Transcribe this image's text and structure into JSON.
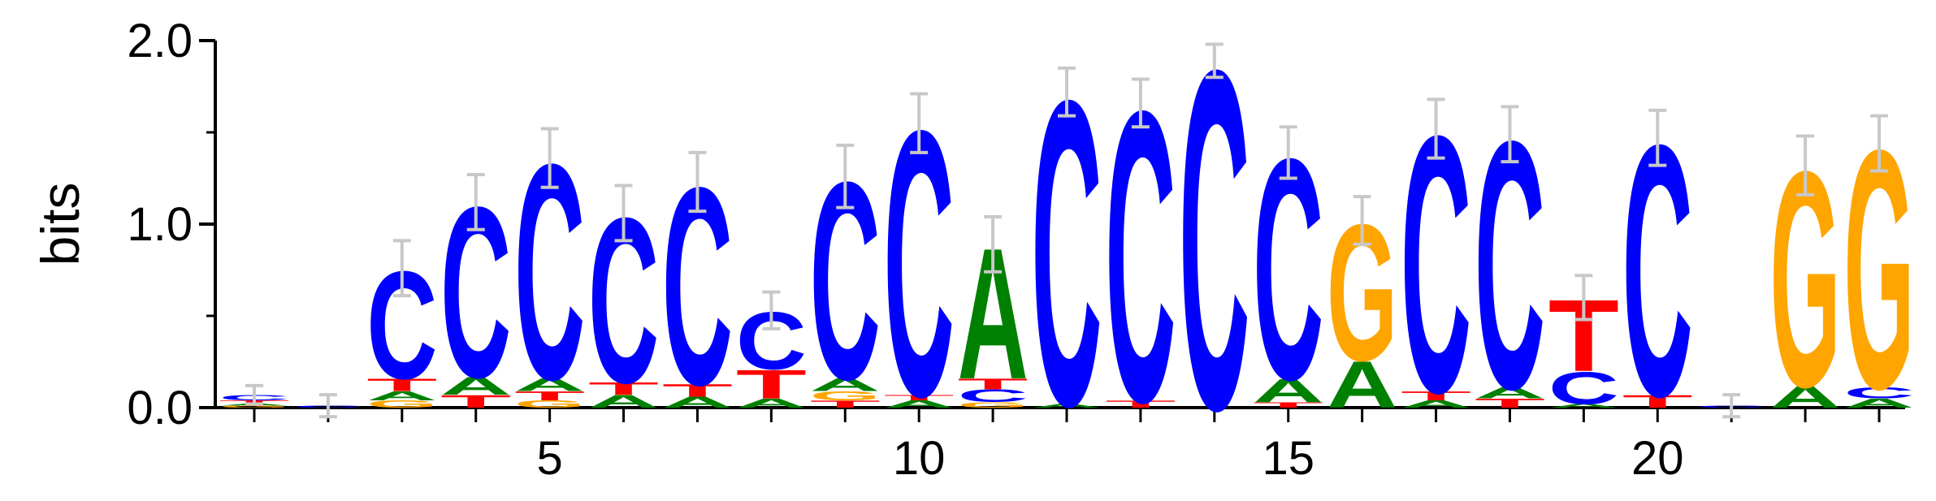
{
  "chart_data": {
    "type": "sequence-logo",
    "ylabel": "bits",
    "ylim": [
      0,
      2.0
    ],
    "y_ticks": [
      {
        "value": 0.0,
        "label": "0.0"
      },
      {
        "value": 1.0,
        "label": "1.0"
      },
      {
        "value": 2.0,
        "label": "2.0"
      }
    ],
    "x_range": [
      1,
      23
    ],
    "x_ticks": [
      {
        "value": 5,
        "label": "5"
      },
      {
        "value": 10,
        "label": "10"
      },
      {
        "value": 15,
        "label": "15"
      },
      {
        "value": 20,
        "label": "20"
      }
    ],
    "colors": {
      "A": "#008000",
      "C": "#0000ff",
      "G": "#ffa500",
      "T": "#ff0000"
    },
    "error_bar_color": "#c8c8c8",
    "positions": [
      {
        "pos": 1,
        "stack": [
          {
            "base": "G",
            "bits": 0.01
          },
          {
            "base": "A",
            "bits": 0.01
          },
          {
            "base": "T",
            "bits": 0.02
          },
          {
            "base": "C",
            "bits": 0.03
          }
        ],
        "error": 0.05
      },
      {
        "pos": 2,
        "stack": [
          {
            "base": "C",
            "bits": 0.01
          }
        ],
        "error": 0.06
      },
      {
        "pos": 3,
        "stack": [
          {
            "base": "G",
            "bits": 0.04
          },
          {
            "base": "A",
            "bits": 0.05
          },
          {
            "base": "T",
            "bits": 0.07
          },
          {
            "base": "C",
            "bits": 0.6
          }
        ],
        "error": 0.15
      },
      {
        "pos": 4,
        "stack": [
          {
            "base": "T",
            "bits": 0.07
          },
          {
            "base": "A",
            "bits": 0.1
          },
          {
            "base": "C",
            "bits": 0.95
          }
        ],
        "error": 0.15
      },
      {
        "pos": 5,
        "stack": [
          {
            "base": "G",
            "bits": 0.04
          },
          {
            "base": "T",
            "bits": 0.05
          },
          {
            "base": "A",
            "bits": 0.07
          },
          {
            "base": "C",
            "bits": 1.2
          }
        ],
        "error": 0.16
      },
      {
        "pos": 6,
        "stack": [
          {
            "base": "A",
            "bits": 0.07
          },
          {
            "base": "T",
            "bits": 0.07
          },
          {
            "base": "C",
            "bits": 0.92
          }
        ],
        "error": 0.15
      },
      {
        "pos": 7,
        "stack": [
          {
            "base": "A",
            "bits": 0.06
          },
          {
            "base": "T",
            "bits": 0.07
          },
          {
            "base": "C",
            "bits": 1.1
          }
        ],
        "error": 0.16
      },
      {
        "pos": 8,
        "stack": [
          {
            "base": "A",
            "bits": 0.05
          },
          {
            "base": "T",
            "bits": 0.16
          },
          {
            "base": "C",
            "bits": 0.32
          }
        ],
        "error": 0.1
      },
      {
        "pos": 9,
        "stack": [
          {
            "base": "T",
            "bits": 0.04
          },
          {
            "base": "G",
            "bits": 0.05
          },
          {
            "base": "A",
            "bits": 0.07
          },
          {
            "base": "C",
            "bits": 1.1
          }
        ],
        "error": 0.17
      },
      {
        "pos": 10,
        "stack": [
          {
            "base": "A",
            "bits": 0.04
          },
          {
            "base": "T",
            "bits": 0.03
          },
          {
            "base": "C",
            "bits": 1.48
          }
        ],
        "error": 0.16
      },
      {
        "pos": 11,
        "stack": [
          {
            "base": "G",
            "bits": 0.03
          },
          {
            "base": "C",
            "bits": 0.07
          },
          {
            "base": "T",
            "bits": 0.06
          },
          {
            "base": "A",
            "bits": 0.73
          }
        ],
        "error": 0.15
      },
      {
        "pos": 12,
        "stack": [
          {
            "base": "A",
            "bits": 0.02
          },
          {
            "base": "C",
            "bits": 1.7
          }
        ],
        "error": 0.13
      },
      {
        "pos": 13,
        "stack": [
          {
            "base": "T",
            "bits": 0.04
          },
          {
            "base": "C",
            "bits": 1.62
          }
        ],
        "error": 0.13
      },
      {
        "pos": 14,
        "stack": [
          {
            "base": "C",
            "bits": 1.89
          }
        ],
        "error": 0.09
      },
      {
        "pos": 15,
        "stack": [
          {
            "base": "T",
            "bits": 0.03
          },
          {
            "base": "A",
            "bits": 0.13
          },
          {
            "base": "C",
            "bits": 1.23
          }
        ],
        "error": 0.14
      },
      {
        "pos": 16,
        "stack": [
          {
            "base": "A",
            "bits": 0.26
          },
          {
            "base": "G",
            "bits": 0.76
          }
        ],
        "error": 0.13
      },
      {
        "pos": 17,
        "stack": [
          {
            "base": "A",
            "bits": 0.04
          },
          {
            "base": "T",
            "bits": 0.05
          },
          {
            "base": "C",
            "bits": 1.43
          }
        ],
        "error": 0.16
      },
      {
        "pos": 18,
        "stack": [
          {
            "base": "T",
            "bits": 0.05
          },
          {
            "base": "A",
            "bits": 0.06
          },
          {
            "base": "C",
            "bits": 1.38
          }
        ],
        "error": 0.15
      },
      {
        "pos": 19,
        "stack": [
          {
            "base": "A",
            "bits": 0.02
          },
          {
            "base": "C",
            "bits": 0.18
          },
          {
            "base": "T",
            "bits": 0.4
          }
        ],
        "error": 0.12
      },
      {
        "pos": 20,
        "stack": [
          {
            "base": "T",
            "bits": 0.07
          },
          {
            "base": "C",
            "bits": 1.4
          }
        ],
        "error": 0.15
      },
      {
        "pos": 21,
        "stack": [
          {
            "base": "C",
            "bits": 0.01
          }
        ],
        "error": 0.06
      },
      {
        "pos": 22,
        "stack": [
          {
            "base": "A",
            "bits": 0.12
          },
          {
            "base": "G",
            "bits": 1.2
          }
        ],
        "error": 0.16
      },
      {
        "pos": 23,
        "stack": [
          {
            "base": "A",
            "bits": 0.05
          },
          {
            "base": "C",
            "bits": 0.06
          },
          {
            "base": "G",
            "bits": 1.33
          }
        ],
        "error": 0.15
      }
    ]
  }
}
